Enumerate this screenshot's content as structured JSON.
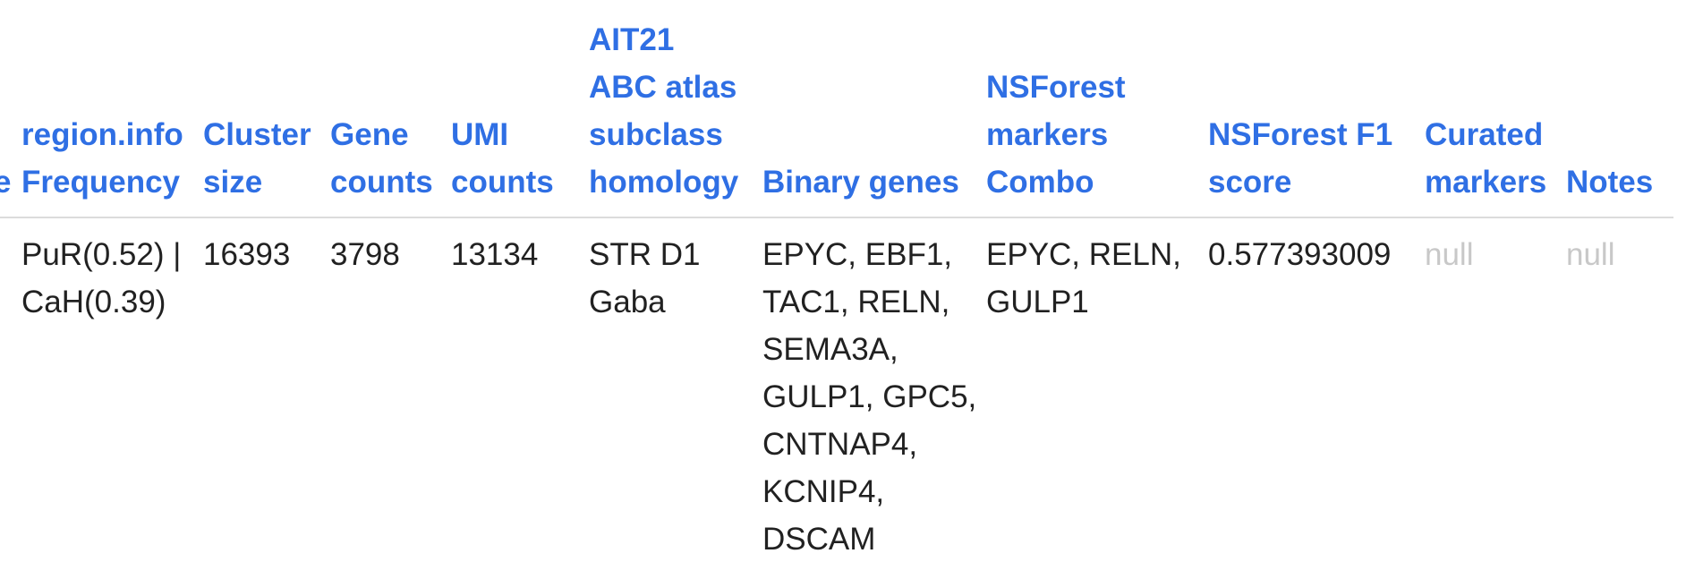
{
  "table": {
    "headers": [
      {
        "id": "cut",
        "label": "e"
      },
      {
        "id": "region-info-frequency",
        "label": "region.info\nFrequency"
      },
      {
        "id": "cluster-size",
        "label": "Cluster\nsize"
      },
      {
        "id": "gene-counts",
        "label": "Gene\ncounts"
      },
      {
        "id": "umi-counts",
        "label": "UMI\ncounts"
      },
      {
        "id": "ait21-homology",
        "label": "AIT21\nABC atlas\nsubclass\nhomology"
      },
      {
        "id": "binary-genes",
        "label": "Binary genes"
      },
      {
        "id": "nsforest-markers-combo",
        "label": "NSForest\nmarkers\nCombo"
      },
      {
        "id": "nsforest-f1-score",
        "label": "NSForest F1\nscore"
      },
      {
        "id": "curated-markers",
        "label": "Curated\nmarkers"
      },
      {
        "id": "notes",
        "label": "Notes"
      }
    ],
    "row": {
      "cut": "",
      "region_info_frequency": "PuR(0.52) |\nCaH(0.39)",
      "cluster_size": "16393",
      "gene_counts": "3798",
      "umi_counts": "13134",
      "ait21_homology": "STR D1\nGaba",
      "binary_genes": "EPYC, EBF1,\nTAC1, RELN,\nSEMA3A,\nGULP1, GPC5,\nCNTNAP4,\nKCNIP4,\nDSCAM",
      "nsforest_markers_combo": "EPYC, RELN,\nGULP1",
      "nsforest_f1_score": "0.577393009",
      "curated_markers": "null",
      "notes": "null"
    }
  }
}
